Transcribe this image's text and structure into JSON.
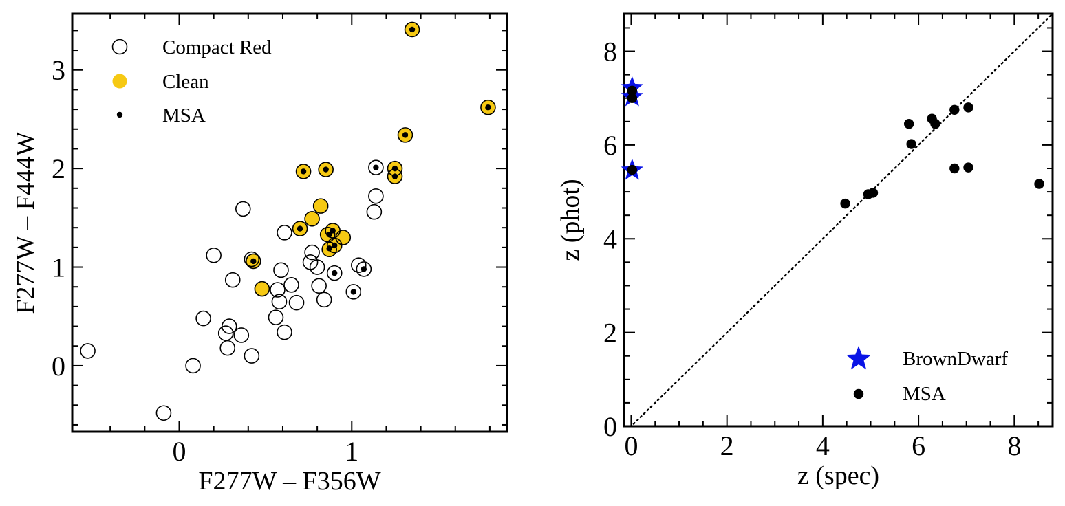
{
  "chart_data": [
    {
      "type": "scatter",
      "xlabel": "F277W – F356W",
      "ylabel": "F277W – F444W",
      "xlim": [
        -0.62,
        1.9
      ],
      "ylim": [
        -0.67,
        3.57
      ],
      "xticks": [
        0,
        1
      ],
      "yticks": [
        0,
        1,
        2,
        3
      ],
      "xticks_minor": [
        -0.4,
        -0.2,
        0.2,
        0.4,
        0.6,
        0.8,
        1.2,
        1.4,
        1.6,
        1.8
      ],
      "yticks_minor": [
        -0.6,
        -0.4,
        -0.2,
        0.2,
        0.4,
        0.6,
        0.8,
        1.2,
        1.4,
        1.6,
        1.8,
        2.2,
        2.4,
        2.6,
        2.8,
        3.2,
        3.4
      ],
      "grid": false,
      "legend_position": "top-left",
      "legend": [
        {
          "label": "Compact Red",
          "marker": "open-circle"
        },
        {
          "label": "Clean",
          "marker": "yellow-circle"
        },
        {
          "label": "MSA",
          "marker": "small-dot"
        }
      ],
      "colors": {
        "clean_fill": "#f6c913",
        "msa_dot": "#000000",
        "open_edge": "#000000"
      },
      "series": [
        {
          "name": "Compact Red",
          "points": [
            [
              -0.53,
              0.15
            ],
            [
              -0.09,
              -0.48
            ],
            [
              0.08,
              0.0
            ],
            [
              0.14,
              0.48
            ],
            [
              0.2,
              1.12
            ],
            [
              0.27,
              0.33
            ],
            [
              0.28,
              0.18
            ],
            [
              0.29,
              0.4
            ],
            [
              0.31,
              0.87
            ],
            [
              0.36,
              0.31
            ],
            [
              0.37,
              1.59
            ],
            [
              0.42,
              0.1
            ],
            [
              0.42,
              1.08
            ],
            [
              0.43,
              1.06
            ],
            [
              0.48,
              0.78
            ],
            [
              0.56,
              0.49
            ],
            [
              0.57,
              0.77
            ],
            [
              0.58,
              0.65
            ],
            [
              0.59,
              0.97
            ],
            [
              0.61,
              1.35
            ],
            [
              0.61,
              0.34
            ],
            [
              0.65,
              0.82
            ],
            [
              0.68,
              0.64
            ],
            [
              0.7,
              1.39
            ],
            [
              0.72,
              1.97
            ],
            [
              0.76,
              1.05
            ],
            [
              0.77,
              1.15
            ],
            [
              0.77,
              1.49
            ],
            [
              0.8,
              1.0
            ],
            [
              0.81,
              0.81
            ],
            [
              0.82,
              1.62
            ],
            [
              0.84,
              0.67
            ],
            [
              0.85,
              1.99
            ],
            [
              0.86,
              1.33
            ],
            [
              0.87,
              1.18
            ],
            [
              0.89,
              1.37
            ],
            [
              0.9,
              1.22
            ],
            [
              0.9,
              0.94
            ],
            [
              0.95,
              1.3
            ],
            [
              1.01,
              0.75
            ],
            [
              1.04,
              1.02
            ],
            [
              1.07,
              0.98
            ],
            [
              1.13,
              1.56
            ],
            [
              1.14,
              1.72
            ],
            [
              1.14,
              2.01
            ],
            [
              1.25,
              2.0
            ],
            [
              1.25,
              1.92
            ],
            [
              1.31,
              2.34
            ],
            [
              1.35,
              3.41
            ],
            [
              1.79,
              2.62
            ]
          ]
        },
        {
          "name": "Clean",
          "points": [
            [
              0.43,
              1.06
            ],
            [
              0.48,
              0.78
            ],
            [
              0.7,
              1.39
            ],
            [
              0.72,
              1.97
            ],
            [
              0.77,
              1.49
            ],
            [
              0.82,
              1.62
            ],
            [
              0.85,
              1.99
            ],
            [
              0.86,
              1.33
            ],
            [
              0.87,
              1.18
            ],
            [
              0.89,
              1.37
            ],
            [
              0.9,
              1.22
            ],
            [
              0.95,
              1.3
            ],
            [
              1.25,
              2.0
            ],
            [
              1.25,
              1.92
            ],
            [
              1.31,
              2.34
            ],
            [
              1.35,
              3.41
            ],
            [
              1.79,
              2.62
            ]
          ]
        },
        {
          "name": "MSA",
          "points": [
            [
              0.43,
              1.06
            ],
            [
              0.72,
              1.97
            ],
            [
              0.7,
              1.39
            ],
            [
              0.85,
              1.99
            ],
            [
              0.87,
              1.33
            ],
            [
              0.89,
              1.37
            ],
            [
              0.87,
              1.19
            ],
            [
              0.9,
              1.22
            ],
            [
              0.9,
              0.94
            ],
            [
              1.01,
              0.75
            ],
            [
              1.07,
              0.98
            ],
            [
              1.14,
              2.01
            ],
            [
              1.25,
              2.0
            ],
            [
              1.25,
              1.92
            ],
            [
              1.31,
              2.34
            ],
            [
              1.35,
              3.41
            ],
            [
              1.79,
              2.62
            ]
          ]
        }
      ]
    },
    {
      "type": "scatter",
      "xlabel": "z (spec)",
      "ylabel": "z (phot)",
      "xlim": [
        -0.15,
        8.8
      ],
      "ylim": [
        0,
        8.8
      ],
      "xticks": [
        0,
        2,
        4,
        6,
        8
      ],
      "yticks": [
        0,
        2,
        4,
        6,
        8
      ],
      "xticks_minor": [
        0.5,
        1,
        1.5,
        2.5,
        3,
        3.5,
        4.5,
        5,
        5.5,
        6.5,
        7,
        7.5,
        8.5
      ],
      "yticks_minor": [
        0.5,
        1,
        1.5,
        2.5,
        3,
        3.5,
        4.5,
        5,
        5.5,
        6.5,
        7,
        7.5,
        8.5
      ],
      "grid": false,
      "legend_position": "bottom-right",
      "one_to_one_line": true,
      "legend": [
        {
          "label": "BrownDwarf",
          "marker": "blue-star"
        },
        {
          "label": "MSA",
          "marker": "black-dot"
        }
      ],
      "colors": {
        "brown_dwarf": "#0a14e6",
        "msa": "#000000"
      },
      "series": [
        {
          "name": "BrownDwarf",
          "points": [
            [
              0.02,
              7.22
            ],
            [
              0.02,
              7.03
            ],
            [
              0.02,
              5.46
            ]
          ]
        },
        {
          "name": "MSA",
          "points": [
            [
              0.02,
              7.16
            ],
            [
              0.02,
              7.0
            ],
            [
              0.02,
              5.47
            ],
            [
              4.47,
              4.75
            ],
            [
              4.95,
              4.95
            ],
            [
              5.05,
              4.98
            ],
            [
              5.8,
              6.45
            ],
            [
              5.85,
              6.02
            ],
            [
              6.28,
              6.56
            ],
            [
              6.35,
              6.45
            ],
            [
              6.75,
              6.75
            ],
            [
              7.04,
              6.8
            ],
            [
              6.75,
              5.5
            ],
            [
              7.04,
              5.52
            ],
            [
              8.52,
              5.17
            ]
          ]
        }
      ]
    }
  ]
}
